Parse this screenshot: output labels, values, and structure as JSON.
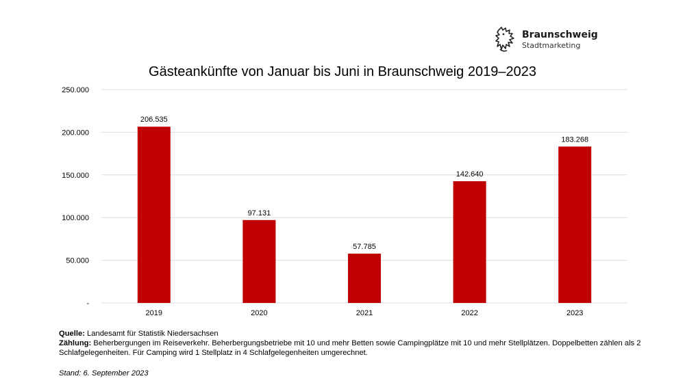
{
  "logo": {
    "name": "Braunschweig",
    "subtitle": "Stadtmarketing",
    "icon": "braunschweig-lion-icon"
  },
  "chart_data": {
    "type": "bar",
    "title": "Gästeankünfte von Januar bis Juni in Braunschweig 2019–2023",
    "categories": [
      "2019",
      "2020",
      "2021",
      "2022",
      "2023"
    ],
    "values": [
      206535,
      97131,
      57785,
      142640,
      183268
    ],
    "value_labels": [
      "206.535",
      "97.131",
      "57.785",
      "142.640",
      "183.268"
    ],
    "ylim": [
      0,
      250000
    ],
    "yticks": [
      0,
      50000,
      100000,
      150000,
      200000,
      250000
    ],
    "ytick_labels": [
      "-",
      "50.000",
      "100.000",
      "150.000",
      "200.000",
      "250.000"
    ],
    "xlabel": "",
    "ylabel": "",
    "bar_color": "#c00000",
    "grid_color": "#d9d9d9",
    "grid": true,
    "legend": "none"
  },
  "notes": {
    "source_label": "Quelle:",
    "source_text": " Landesamt für Statistik Niedersachsen",
    "count_label": "Zählung:",
    "count_text": " Beherbergungen im Reiseverkehr. Beherbergungsbetriebe mit 10 und mehr Betten sowie Campingplätze mit 10 und mehr Stellplätzen. Doppelbetten zählen als 2 Schlafgelegenheiten. Für Camping wird 1 Stellplatz in 4 Schlafgelegenheiten umgerechnet.",
    "stand": "Stand: 6. September 2023"
  }
}
